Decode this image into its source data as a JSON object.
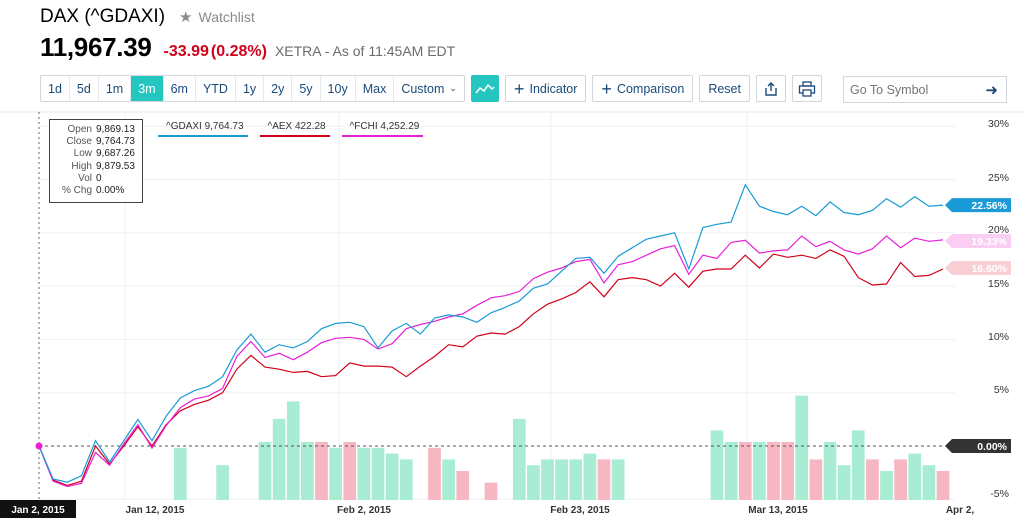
{
  "header": {
    "title": "DAX (^GDAXI)",
    "watchlist_label": "Watchlist",
    "price": "11,967.39",
    "change": "-33.99",
    "change_pct": "(0.28%)",
    "exchange_info": "XETRA - As of 11:45AM EDT"
  },
  "toolbar": {
    "ranges": [
      "1d",
      "5d",
      "1m",
      "3m",
      "6m",
      "YTD",
      "1y",
      "2y",
      "5y",
      "10y",
      "Max"
    ],
    "active_range": "3m",
    "custom_label": "Custom",
    "indicator_label": "Indicator",
    "comparison_label": "Comparison",
    "reset_label": "Reset",
    "search_placeholder": "Go To Symbol"
  },
  "ohlc": {
    "rows": [
      {
        "label": "Open",
        "value": "9,869.13"
      },
      {
        "label": "Close",
        "value": "9,764.73"
      },
      {
        "label": "Low",
        "value": "9,687.26"
      },
      {
        "label": "High",
        "value": "9,879.53"
      },
      {
        "label": "Vol",
        "value": "0"
      },
      {
        "label": "% Chg",
        "value": "0.00%"
      }
    ]
  },
  "legend": [
    {
      "label": "^GDAXI 9,764.73",
      "color": "#1a9bd7"
    },
    {
      "label": "^AEX 422.28",
      "color": "#d0021b"
    },
    {
      "label": "^FCHI 4,252.29",
      "color": "#e91fd7"
    }
  ],
  "colors": {
    "gdaxi": "#1a9bd7",
    "aex": "#d0021b",
    "fchi": "#e91fd7",
    "vol_up": "#a8ecd3",
    "vol_down": "#f7b7c2",
    "accent": "#26c6c0"
  },
  "chart_data": {
    "type": "line",
    "yticks": [
      "30%",
      "25%",
      "20%",
      "15%",
      "10%",
      "5%",
      "0.00%",
      "-5%"
    ],
    "xticks": [
      "Jan 2, 2015",
      "Jan 12, 2015",
      "Feb 2, 2015",
      "Feb 23, 2015",
      "Mar 13, 2015",
      "Apr 2,"
    ],
    "ylim": [
      -5,
      30
    ],
    "series": [
      {
        "name": "^GDAXI",
        "last_label": "22.56%",
        "values": [
          0,
          -3.1,
          -3.4,
          -2.8,
          0.5,
          -1.5,
          0.5,
          2.5,
          0.5,
          2.8,
          4.5,
          5.2,
          5.6,
          6.5,
          9,
          10.5,
          8.8,
          9.5,
          9.2,
          9.8,
          11,
          11.5,
          11.6,
          11.2,
          9.2,
          10.8,
          11.5,
          10.5,
          12,
          12.3,
          12.1,
          11.6,
          12.5,
          13,
          13.6,
          14.8,
          15.2,
          16.4,
          17.6,
          17.7,
          16.2,
          17.8,
          18.6,
          19.4,
          19.7,
          20,
          16.6,
          20.5,
          20.8,
          21,
          24.5,
          22.5,
          22,
          21.7,
          22.5,
          21.6,
          22.9,
          21.9,
          21.7,
          22.1,
          23.2,
          22.4,
          23.4,
          22.5,
          22.6
        ]
      },
      {
        "name": "^AEX",
        "last_label": "16.60%",
        "values": [
          0,
          -3.2,
          -3.7,
          -3.3,
          0,
          -1.7,
          0,
          1.8,
          0,
          2,
          3.3,
          3.9,
          4.3,
          5,
          7.2,
          8.5,
          7.4,
          7.2,
          6.9,
          7,
          6.5,
          6.6,
          7.8,
          7.5,
          7.5,
          7.4,
          6.5,
          7.5,
          8.4,
          9.5,
          9.3,
          10.3,
          10.6,
          10.5,
          11.2,
          12.4,
          13.3,
          13.8,
          14.4,
          15.4,
          14,
          15.6,
          15.8,
          15.6,
          15,
          16.2,
          14.9,
          16.4,
          16.6,
          16.6,
          17.9,
          16.7,
          18,
          17.7,
          17.9,
          17.6,
          18.4,
          17.8,
          15.8,
          15.1,
          15.2,
          17.2,
          15.9,
          16,
          16.6
        ]
      },
      {
        "name": "^FCHI",
        "last_label": "19.33%",
        "values": [
          0,
          -3.3,
          -3.8,
          -3.5,
          -0.6,
          -1.8,
          0.2,
          2,
          -0.2,
          1.9,
          3.6,
          4.4,
          4.7,
          5.4,
          8.4,
          9.8,
          8.3,
          8.7,
          8.1,
          8.8,
          9.7,
          10.1,
          10.2,
          10,
          9.1,
          9.6,
          11,
          11.4,
          11.7,
          12.1,
          12.4,
          13.2,
          13.9,
          14.1,
          14.5,
          15.7,
          16.3,
          16.7,
          17.3,
          17.5,
          15.3,
          17,
          17.3,
          17.9,
          18.5,
          18.8,
          16.1,
          17.9,
          17.6,
          19.1,
          19.3,
          18.1,
          18.3,
          18.4,
          19.7,
          18.7,
          19.2,
          18.4,
          18,
          18.5,
          19.7,
          18.6,
          19.5,
          19.2,
          19.33
        ]
      }
    ],
    "volume": [
      {
        "v": 0,
        "up": true
      },
      {
        "v": 0,
        "up": true
      },
      {
        "v": 0,
        "up": true
      },
      {
        "v": 0,
        "up": true
      },
      {
        "v": 0,
        "up": true
      },
      {
        "v": 0,
        "up": true
      },
      {
        "v": 0,
        "up": true
      },
      {
        "v": 0,
        "up": true
      },
      {
        "v": 0,
        "up": true
      },
      {
        "v": 0,
        "up": true
      },
      {
        "v": 0.9,
        "up": true
      },
      {
        "v": 0,
        "up": true
      },
      {
        "v": 0,
        "up": true
      },
      {
        "v": 0.6,
        "up": true
      },
      {
        "v": 0,
        "up": true
      },
      {
        "v": 0,
        "up": true
      },
      {
        "v": 1.0,
        "up": true
      },
      {
        "v": 1.4,
        "up": true
      },
      {
        "v": 1.7,
        "up": true
      },
      {
        "v": 1.0,
        "up": true
      },
      {
        "v": 1.0,
        "up": false
      },
      {
        "v": 0.9,
        "up": true
      },
      {
        "v": 1.0,
        "up": false
      },
      {
        "v": 0.9,
        "up": true
      },
      {
        "v": 0.9,
        "up": true
      },
      {
        "v": 0.8,
        "up": true
      },
      {
        "v": 0.7,
        "up": true
      },
      {
        "v": 0,
        "up": true
      },
      {
        "v": 0.9,
        "up": false
      },
      {
        "v": 0.7,
        "up": true
      },
      {
        "v": 0.5,
        "up": false
      },
      {
        "v": 0,
        "up": true
      },
      {
        "v": 0.3,
        "up": false
      },
      {
        "v": 0,
        "up": true
      },
      {
        "v": 1.4,
        "up": true
      },
      {
        "v": 0.6,
        "up": true
      },
      {
        "v": 0.7,
        "up": true
      },
      {
        "v": 0.7,
        "up": true
      },
      {
        "v": 0.7,
        "up": true
      },
      {
        "v": 0.8,
        "up": true
      },
      {
        "v": 0.7,
        "up": false
      },
      {
        "v": 0.7,
        "up": true
      },
      {
        "v": 0,
        "up": true
      },
      {
        "v": 0,
        "up": true
      },
      {
        "v": 0,
        "up": true
      },
      {
        "v": 0,
        "up": true
      },
      {
        "v": 0,
        "up": true
      },
      {
        "v": 0,
        "up": true
      },
      {
        "v": 1.2,
        "up": true
      },
      {
        "v": 1.0,
        "up": true
      },
      {
        "v": 1.0,
        "up": false
      },
      {
        "v": 1.0,
        "up": true
      },
      {
        "v": 1.0,
        "up": false
      },
      {
        "v": 1.0,
        "up": false
      },
      {
        "v": 1.8,
        "up": true
      },
      {
        "v": 0.7,
        "up": false
      },
      {
        "v": 1.0,
        "up": true
      },
      {
        "v": 0.6,
        "up": true
      },
      {
        "v": 1.2,
        "up": true
      },
      {
        "v": 0.7,
        "up": false
      },
      {
        "v": 0.5,
        "up": true
      },
      {
        "v": 0.7,
        "up": false
      },
      {
        "v": 0.8,
        "up": true
      },
      {
        "v": 0.6,
        "up": true
      },
      {
        "v": 0.5,
        "up": false
      }
    ],
    "grid": true
  }
}
